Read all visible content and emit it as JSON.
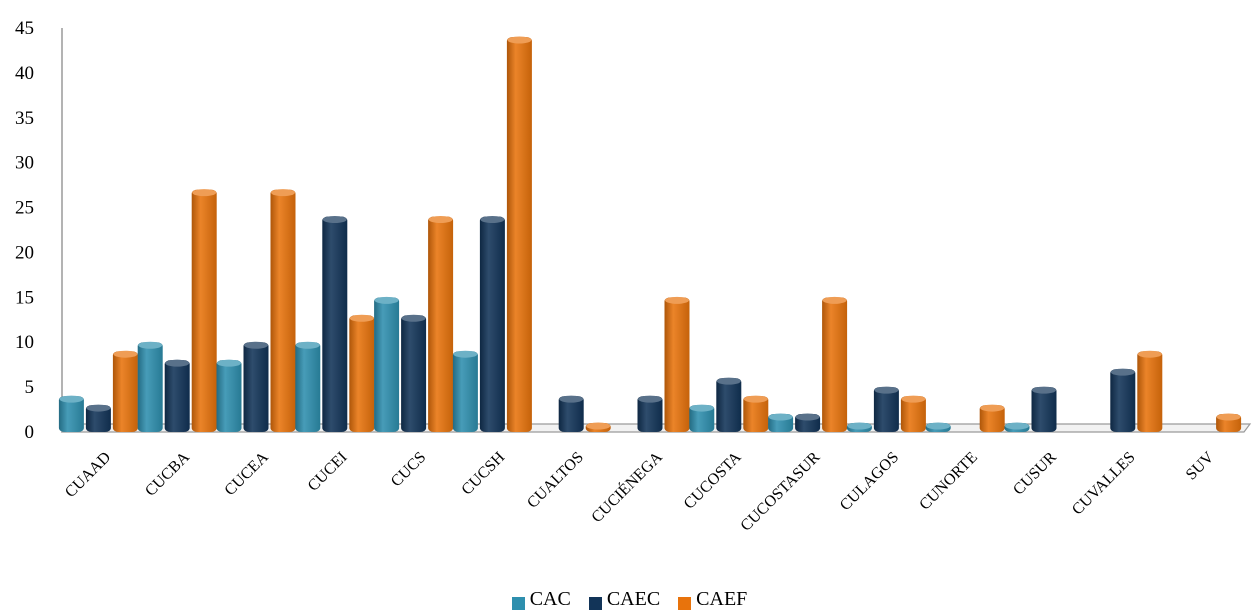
{
  "chart_data": {
    "type": "bar",
    "title": "",
    "xlabel": "",
    "ylabel": "",
    "ylim": [
      0,
      45
    ],
    "y_ticks": [
      0,
      5,
      10,
      15,
      20,
      25,
      30,
      35,
      40,
      45
    ],
    "grid": false,
    "three_d": true,
    "legend_position": "bottom",
    "categories": [
      "CUAAD",
      "CUCBA",
      "CUCEA",
      "CUCEI",
      "CUCS",
      "CUCSH",
      "CUALTOS",
      "CUCIÉNEGA",
      "CUCOSTA",
      "CUCOSTASUR",
      "CULAGOS",
      "CUNORTE",
      "CUSUR",
      "CUVALLES",
      "SUV"
    ],
    "series": [
      {
        "name": "CAC",
        "color": "#2E8FAE",
        "values": [
          4,
          10,
          8,
          10,
          15,
          9,
          0,
          0,
          3,
          2,
          1,
          1,
          1,
          0,
          0
        ]
      },
      {
        "name": "CAEC",
        "color": "#123458",
        "values": [
          3,
          8,
          10,
          24,
          13,
          24,
          4,
          4,
          6,
          2,
          5,
          0,
          5,
          7,
          0
        ]
      },
      {
        "name": "CAEF",
        "color": "#E8730C",
        "values": [
          9,
          27,
          27,
          13,
          24,
          44,
          1,
          15,
          4,
          15,
          4,
          3,
          0,
          9,
          2
        ]
      }
    ]
  }
}
